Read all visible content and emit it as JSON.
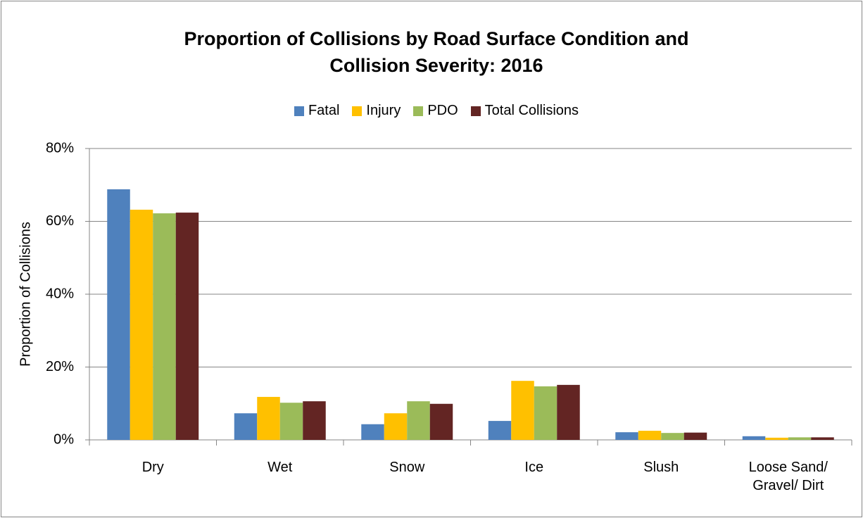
{
  "chart_data": {
    "type": "bar",
    "title": "Proportion of Collisions by Road Surface Condition and Collision Severity: 2016",
    "y_label": "Proportion of Collisions",
    "categories": [
      "Dry",
      "Wet",
      "Snow",
      "Ice",
      "Slush",
      "Loose Sand/ Gravel/ Dirt"
    ],
    "series": [
      {
        "name": "Fatal",
        "color": "#4f81bd",
        "values": [
          68.8,
          7.3,
          4.3,
          5.2,
          2.1,
          1.0
        ]
      },
      {
        "name": "Injury",
        "color": "#ffc000",
        "values": [
          63.2,
          11.8,
          7.3,
          16.2,
          2.5,
          0.6
        ]
      },
      {
        "name": "PDO",
        "color": "#9bbb59",
        "values": [
          62.2,
          10.2,
          10.6,
          14.7,
          1.9,
          0.7
        ]
      },
      {
        "name": "Total Collisions",
        "color": "#632523",
        "values": [
          62.4,
          10.6,
          9.9,
          15.1,
          2.0,
          0.7
        ]
      }
    ],
    "ylim": [
      0,
      80
    ],
    "yticks": [
      {
        "value": 0,
        "label": "0%"
      },
      {
        "value": 20,
        "label": "20%"
      },
      {
        "value": 40,
        "label": "40%"
      },
      {
        "value": 60,
        "label": "60%"
      },
      {
        "value": 80,
        "label": "80%"
      }
    ],
    "grid": true,
    "legend": "top"
  }
}
